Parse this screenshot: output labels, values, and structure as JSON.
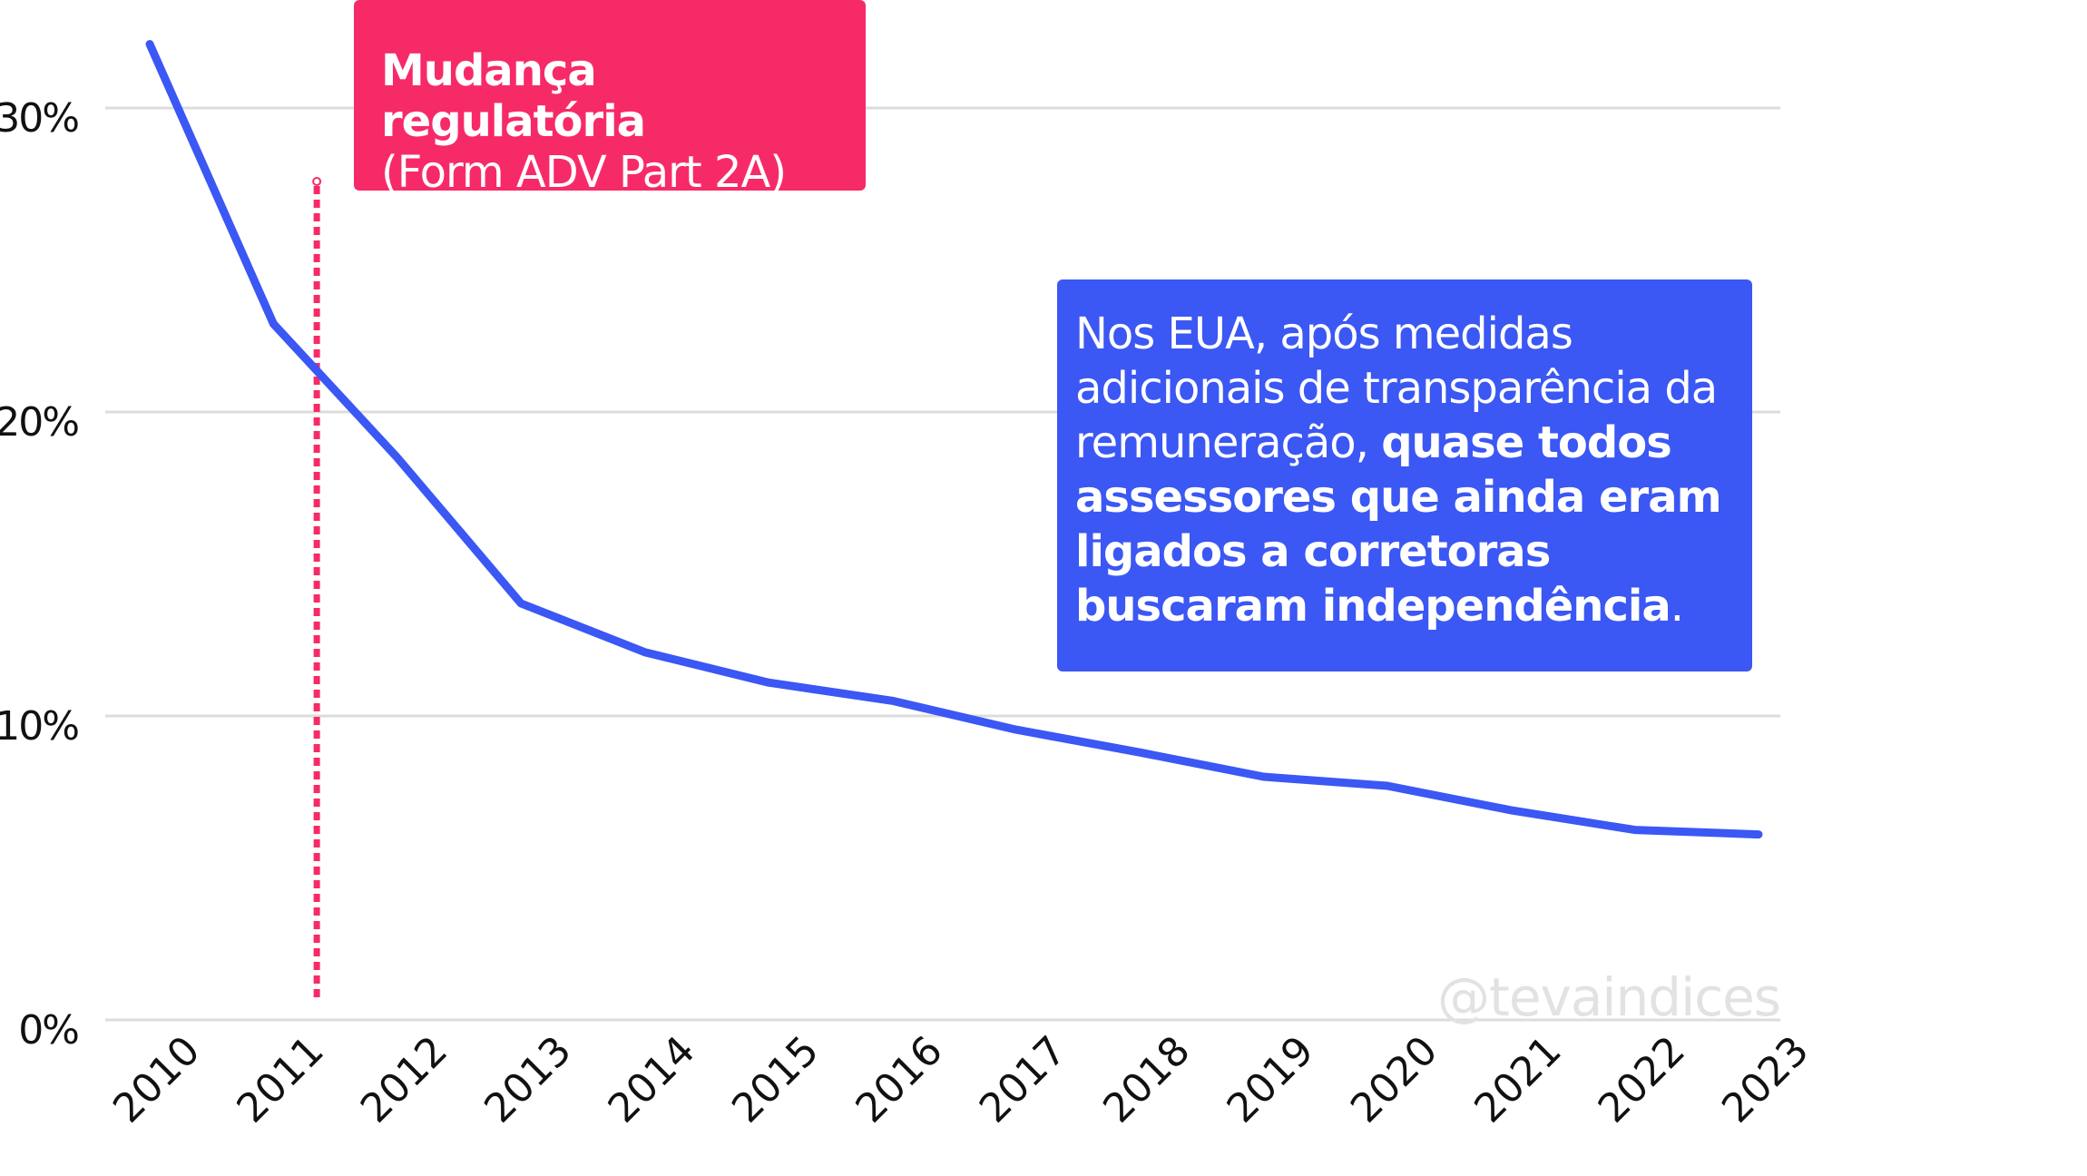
{
  "chart_data": {
    "type": "line",
    "x": [
      2010,
      2011,
      2012,
      2013,
      2014,
      2015,
      2016,
      2017,
      2018,
      2019,
      2020,
      2021,
      2022,
      2023
    ],
    "values": [
      32.1,
      22.9,
      18.5,
      13.7,
      12.1,
      11.1,
      10.5,
      9.55,
      8.8,
      8.0,
      7.7,
      6.9,
      6.25,
      6.1
    ],
    "x_tick_labels": [
      "2010",
      "2011",
      "2012",
      "2013",
      "2014",
      "2015",
      "2016",
      "2017",
      "2018",
      "2019",
      "2020",
      "2021",
      "2022",
      "2023"
    ],
    "y_ticks": [
      0,
      10,
      20,
      30
    ],
    "y_tick_labels": [
      "0%",
      "10%",
      "20%",
      "30%"
    ],
    "ylim": [
      0,
      33
    ],
    "grid": "horizontal",
    "line_color": "#3b57f4",
    "annotation_line_x": 2011.35
  },
  "annotations": {
    "regulation_title": "Mudança regulatória",
    "regulation_sub": "(Form ADV Part 2A)",
    "note_normal": "Nos EUA, após medidas adicionais de transparência da remuneração, ",
    "note_bold": "quase todos assessores que ainda eram ligados a corretoras buscaram independência",
    "note_end": ".",
    "pink": "#f72a68",
    "blue": "#3b57f4"
  },
  "watermark": "@tevaindices"
}
